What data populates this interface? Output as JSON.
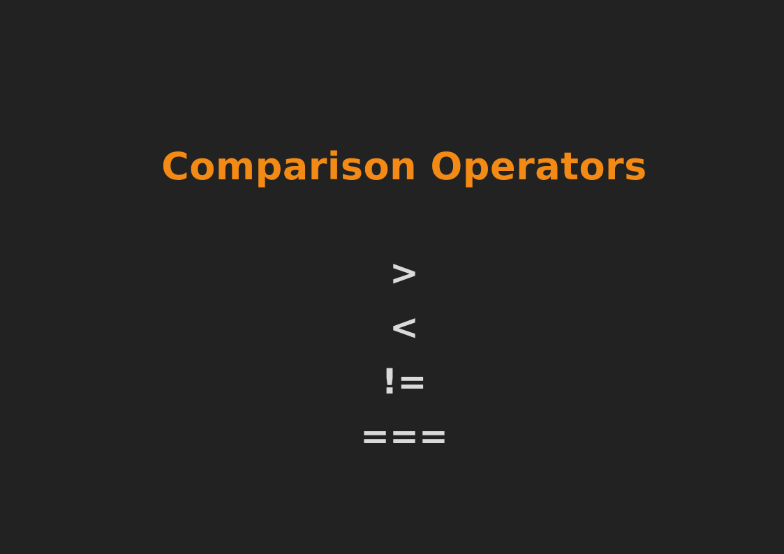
{
  "slide": {
    "title": "Comparison Operators",
    "operators": [
      ">",
      "<",
      "!=",
      "==="
    ]
  },
  "colors": {
    "background": "#222222",
    "title": "#F28A15",
    "operator": "#DADADA"
  }
}
